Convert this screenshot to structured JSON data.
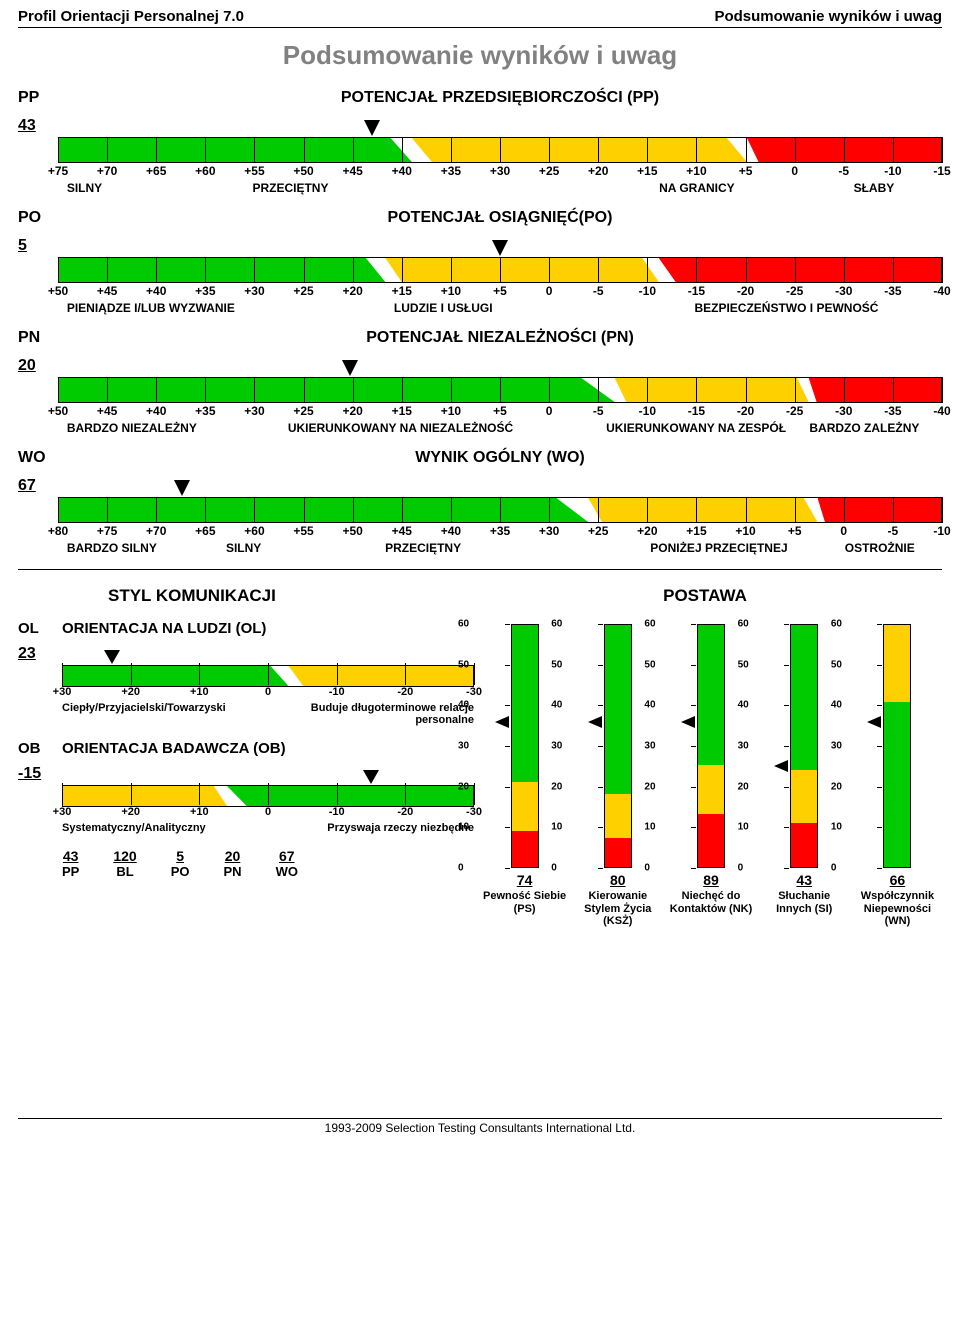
{
  "header": {
    "left": "Profil Orientacji Personalnej 7.0",
    "right": "Podsumowanie wyników i uwag"
  },
  "main_title": "Podsumowanie wyników i uwag",
  "colors": {
    "green": "#00ca00",
    "yellow": "#ffd000",
    "red": "#ff0000",
    "title_grey": "#818181"
  },
  "horiz_scales": [
    {
      "code": "PP",
      "title": "POTENCJAŁ PRZEDSIĘBIORCZOŚCI  (PP)",
      "score": "43",
      "ticks": [
        "+75",
        "+70",
        "+65",
        "+60",
        "+55",
        "+50",
        "+45",
        "+40",
        "+35",
        "+30",
        "+25",
        "+20",
        "+15",
        "+10",
        "+5",
        "0",
        "-5",
        "-10",
        "-15"
      ],
      "zones": [
        {
          "color": "#00ca00",
          "l": 0,
          "r": 40,
          "skewR": 6
        },
        {
          "color": "#ffd000",
          "l": 40,
          "r": 78,
          "skewL": 6,
          "skewR": 6
        },
        {
          "color": "#ff0000",
          "l": 78,
          "r": 100,
          "skewL": 6
        }
      ],
      "arrow_pct": 35.5,
      "bottom_labels": [
        {
          "text": "SILNY",
          "pct": 1
        },
        {
          "text": "PRZECIĘTNY",
          "pct": 22
        },
        {
          "text": "NA GRANICY",
          "pct": 68
        },
        {
          "text": "SŁABY",
          "pct": 90
        }
      ]
    },
    {
      "code": "PO",
      "title": "POTENCJAŁ OSIĄGNIĘĆ(PO)",
      "score": "5",
      "ticks": [
        "+50",
        "+45",
        "+40",
        "+35",
        "+30",
        "+25",
        "+20",
        "+15",
        "+10",
        "+5",
        "0",
        "-5",
        "-10",
        "-15",
        "-20",
        "-25",
        "-30",
        "-35",
        "-40"
      ],
      "zones": [
        {
          "color": "#00ca00",
          "l": 0,
          "r": 37,
          "skewR": 6
        },
        {
          "color": "#ffd000",
          "l": 37,
          "r": 68,
          "skewL": 6,
          "skewR": 6
        },
        {
          "color": "#ff0000",
          "l": 68,
          "r": 100,
          "skewL": 6
        }
      ],
      "arrow_pct": 50,
      "bottom_labels": [
        {
          "text": "PIENIĄDZE I/LUB WYZWANIE",
          "pct": 1
        },
        {
          "text": "LUDZIE I USŁUGI",
          "pct": 38
        },
        {
          "text": "BEZPIECZEŃSTWO I PEWNOŚĆ",
          "pct": 72
        }
      ]
    },
    {
      "code": "PN",
      "title": "POTENCJAŁ NIEZALEŻNOŚCI (PN)",
      "score": "20",
      "ticks": [
        "+50",
        "+45",
        "+40",
        "+35",
        "+30",
        "+25",
        "+20",
        "+15",
        "+10",
        "+5",
        "0",
        "-5",
        "-10",
        "-15",
        "-20",
        "-25",
        "-30",
        "-35",
        "-40"
      ],
      "zones": [
        {
          "color": "#00ca00",
          "l": 0,
          "r": 63,
          "skewR": 6
        },
        {
          "color": "#ffd000",
          "l": 63,
          "r": 85,
          "skewL": 6,
          "skewR": 6
        },
        {
          "color": "#ff0000",
          "l": 85,
          "r": 100,
          "skewL": 6
        }
      ],
      "arrow_pct": 33,
      "bottom_labels": [
        {
          "text": "BARDZO NIEZALEŻNY",
          "pct": 1
        },
        {
          "text": "UKIERUNKOWANY NA NIEZALEŻNOŚĆ",
          "pct": 26
        },
        {
          "text": "UKIERUNKOWANY NA ZESPÓŁ",
          "pct": 62
        },
        {
          "text": "BARDZO ZALEŻNY",
          "pct": 85
        }
      ]
    },
    {
      "code": "WO",
      "title": "WYNIK OGÓLNY (WO)",
      "score": "67",
      "ticks": [
        "+80",
        "+75",
        "+70",
        "+65",
        "+60",
        "+55",
        "+50",
        "+45",
        "+40",
        "+35",
        "+30",
        "+25",
        "+20",
        "+15",
        "+10",
        "+5",
        "0",
        "-5",
        "-10"
      ],
      "zones": [
        {
          "color": "#00ca00",
          "l": 0,
          "r": 60,
          "skewR": 6
        },
        {
          "color": "#ffd000",
          "l": 60,
          "r": 86,
          "skewL": 6,
          "skewR": 6
        },
        {
          "color": "#ff0000",
          "l": 86,
          "r": 100,
          "skewL": 6
        }
      ],
      "arrow_pct": 14,
      "bottom_labels": [
        {
          "text": "BARDZO SILNY",
          "pct": 1
        },
        {
          "text": "SILNY",
          "pct": 19
        },
        {
          "text": "PRZECIĘTNY",
          "pct": 37
        },
        {
          "text": "PONIŻEJ PRZECIĘTNEJ",
          "pct": 67
        },
        {
          "text": "OSTROŻNIE",
          "pct": 89
        }
      ]
    }
  ],
  "lower_left_title": "STYL KOMUNIKACJI",
  "lower_right_title": "POSTAWA",
  "mini_scales": [
    {
      "code": "OL",
      "title": "ORIENTACJA NA LUDZI (OL)",
      "score": "23",
      "ticks": [
        "+30",
        "+20",
        "+10",
        "0",
        "-10",
        "-20",
        "-30"
      ],
      "zones": [
        {
          "color": "#00ca00",
          "l": 0,
          "r": 55,
          "skewR": 8
        },
        {
          "color": "#ffd000",
          "l": 55,
          "r": 100,
          "skewL": 8
        }
      ],
      "arrow_pct": 12,
      "labels": [
        "Ciepły/Przyjacielski/Towarzyski",
        "Buduje długoterminowe relacje personalne"
      ]
    },
    {
      "code": "OB",
      "title": "ORIENTACJA BADAWCZA (OB)",
      "score": "-15",
      "ticks": [
        "+30",
        "+20",
        "+10",
        "0",
        "-10",
        "-20",
        "-30"
      ],
      "zones": [
        {
          "color": "#ffd000",
          "l": 0,
          "r": 40,
          "skewR": 8
        },
        {
          "color": "#00ca00",
          "l": 40,
          "r": 100,
          "skewL": 8
        }
      ],
      "arrow_pct": 75,
      "labels": [
        "Systematyczny/Analityczny",
        "Przyswaja rzeczy niezbędne"
      ]
    }
  ],
  "summary": [
    {
      "v": "43",
      "c": "PP"
    },
    {
      "v": "120",
      "c": "BL"
    },
    {
      "v": "5",
      "c": "PO"
    },
    {
      "v": "20",
      "c": "PN"
    },
    {
      "v": "67",
      "c": "WO"
    }
  ],
  "vbars": [
    {
      "score": "74",
      "label": "Pewność Siebie (PS)",
      "arrow": 60,
      "zones": [
        {
          "c": "#ff0000",
          "b": 0,
          "t": 15
        },
        {
          "c": "#ffd000",
          "b": 15,
          "t": 35
        },
        {
          "c": "#00ca00",
          "b": 35,
          "t": 100
        }
      ]
    },
    {
      "score": "80",
      "label": "Kierowanie Stylem Życia (KSŻ)",
      "arrow": 60,
      "zones": [
        {
          "c": "#ff0000",
          "b": 0,
          "t": 12
        },
        {
          "c": "#ffd000",
          "b": 12,
          "t": 30
        },
        {
          "c": "#00ca00",
          "b": 30,
          "t": 100
        }
      ]
    },
    {
      "score": "89",
      "label": "Niechęć do Kontaktów (NK)",
      "arrow": 60,
      "zones": [
        {
          "c": "#ff0000",
          "b": 0,
          "t": 22
        },
        {
          "c": "#ffd000",
          "b": 22,
          "t": 42
        },
        {
          "c": "#00ca00",
          "b": 42,
          "t": 100
        }
      ]
    },
    {
      "score": "43",
      "label": "Słuchanie Innych (SI)",
      "arrow": 42,
      "zones": [
        {
          "c": "#ff0000",
          "b": 0,
          "t": 18
        },
        {
          "c": "#ffd000",
          "b": 18,
          "t": 40
        },
        {
          "c": "#00ca00",
          "b": 40,
          "t": 100
        }
      ]
    },
    {
      "score": "66",
      "label": "Współczynnik Niepewności (WN)",
      "arrow": 60,
      "zones": [
        {
          "c": "#00ca00",
          "b": 0,
          "t": 68
        },
        {
          "c": "#ffd000",
          "b": 68,
          "t": 100
        }
      ]
    }
  ],
  "vticks": [
    "60",
    "50",
    "40",
    "30",
    "20",
    "10",
    "0"
  ],
  "footer": "1993-2009 Selection Testing Consultants International Ltd."
}
